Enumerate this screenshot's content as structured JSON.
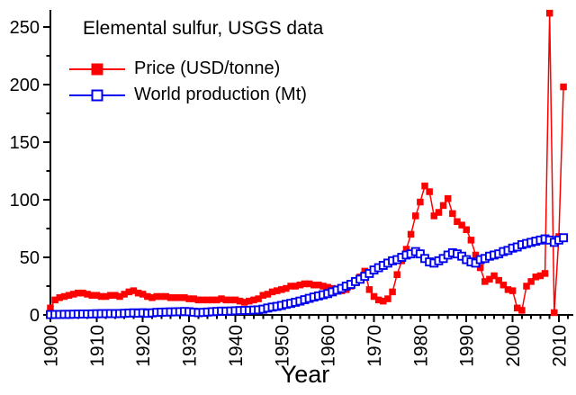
{
  "title": "Elemental sulfur, USGS data",
  "legend": [
    {
      "label": "Price (USD/tonne)",
      "color": "#ff0000",
      "marker": "filled-square"
    },
    {
      "label": "World production (Mt)",
      "color": "#0000ee",
      "marker": "open-square"
    }
  ],
  "chart_data": {
    "type": "line",
    "title": "Elemental sulfur, USGS data",
    "xlabel": "Year",
    "ylabel": "",
    "grid": false,
    "legend_position": "top-left",
    "xlim": [
      1900,
      2013
    ],
    "ylim": [
      0,
      265
    ],
    "x_ticks": [
      1900,
      1910,
      1920,
      1930,
      1940,
      1950,
      1960,
      1970,
      1980,
      1990,
      2000,
      2010
    ],
    "x_minor_step": 2,
    "y_ticks": [
      0,
      50,
      100,
      150,
      200,
      250
    ],
    "y_minor_step": 25,
    "x": [
      1900,
      1901,
      1902,
      1903,
      1904,
      1905,
      1906,
      1907,
      1908,
      1909,
      1910,
      1911,
      1912,
      1913,
      1914,
      1915,
      1916,
      1917,
      1918,
      1919,
      1920,
      1921,
      1922,
      1923,
      1924,
      1925,
      1926,
      1927,
      1928,
      1929,
      1930,
      1931,
      1932,
      1933,
      1934,
      1935,
      1936,
      1937,
      1938,
      1939,
      1940,
      1941,
      1942,
      1943,
      1944,
      1945,
      1946,
      1947,
      1948,
      1949,
      1950,
      1951,
      1952,
      1953,
      1954,
      1955,
      1956,
      1957,
      1958,
      1959,
      1960,
      1961,
      1962,
      1963,
      1964,
      1965,
      1966,
      1967,
      1968,
      1969,
      1970,
      1971,
      1972,
      1973,
      1974,
      1975,
      1976,
      1977,
      1978,
      1979,
      1980,
      1981,
      1982,
      1983,
      1984,
      1985,
      1986,
      1987,
      1988,
      1989,
      1990,
      1991,
      1992,
      1993,
      1994,
      1995,
      1996,
      1997,
      1998,
      1999,
      2000,
      2001,
      2002,
      2003,
      2004,
      2005,
      2006,
      2007,
      2008,
      2009,
      2010,
      2011
    ],
    "series": [
      {
        "name": "Price (USD/tonne)",
        "color": "#ff0000",
        "marker": "filled-square",
        "values": [
          6,
          13,
          15,
          16,
          17,
          18,
          19,
          19,
          18,
          17,
          17,
          16,
          16,
          17,
          17,
          16,
          18,
          20,
          21,
          19,
          18,
          16,
          15,
          16,
          16,
          16,
          15,
          15,
          15,
          15,
          14,
          14,
          13,
          13,
          13,
          13,
          13,
          14,
          13,
          13,
          13,
          12,
          11,
          12,
          13,
          14,
          17,
          18,
          20,
          21,
          22,
          23,
          25,
          25,
          26,
          27,
          27,
          26,
          26,
          25,
          24,
          23,
          21,
          21,
          22,
          25,
          28,
          33,
          38,
          22,
          16,
          13,
          12,
          14,
          20,
          35,
          47,
          57,
          70,
          86,
          98,
          112,
          107,
          86,
          89,
          95,
          101,
          88,
          81,
          78,
          74,
          65,
          52,
          41,
          29,
          31,
          34,
          30,
          26,
          22,
          21,
          6,
          4,
          25,
          29,
          33,
          34,
          36,
          262,
          2,
          68,
          198
        ]
      },
      {
        "name": "World production (Mt)",
        "color": "#0000ee",
        "marker": "open-square",
        "values": [
          0.3,
          0.4,
          0.4,
          0.5,
          0.5,
          0.6,
          0.7,
          0.8,
          0.8,
          0.9,
          1.0,
          1.1,
          1.1,
          1.2,
          1.1,
          1.2,
          1.4,
          1.6,
          1.8,
          1.5,
          1.9,
          1.4,
          1.8,
          2.2,
          2.4,
          2.5,
          2.6,
          2.7,
          2.8,
          3.0,
          2.8,
          2.4,
          2.0,
          2.2,
          2.5,
          2.8,
          3.0,
          3.3,
          3.2,
          3.4,
          3.6,
          3.8,
          3.9,
          4.0,
          4.2,
          4.4,
          5.0,
          6.0,
          6.8,
          7.4,
          8.2,
          9.2,
          10,
          11,
          12,
          13.2,
          14.4,
          15.5,
          16.5,
          17.5,
          18.5,
          20,
          21.5,
          23,
          25,
          26.5,
          29,
          31,
          33.5,
          36,
          39,
          41,
          43,
          45,
          47,
          48,
          50,
          52,
          53,
          55,
          53,
          49,
          46,
          45,
          47,
          49,
          52,
          54,
          53,
          51,
          48,
          46,
          45,
          48,
          49,
          51,
          52,
          53,
          55,
          56,
          58,
          59,
          61,
          62,
          63,
          64,
          65,
          66,
          65,
          63,
          65,
          67
        ]
      }
    ]
  }
}
